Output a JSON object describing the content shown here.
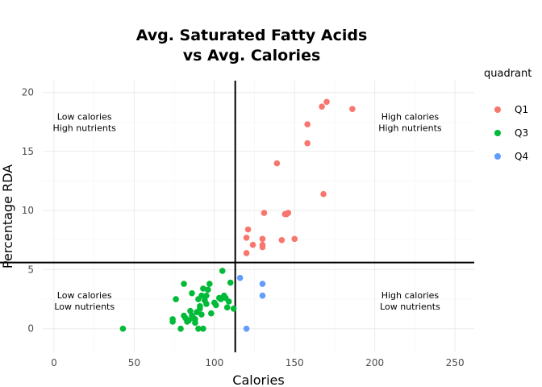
{
  "chart_data": {
    "type": "scatter",
    "title": "Avg. Saturated Fatty Acids\nvs Avg. Calories",
    "xlabel": "Calories",
    "ylabel": "Percentage RDA",
    "xlim": [
      -7,
      262
    ],
    "ylim": [
      -2,
      21
    ],
    "x_ticks": [
      0,
      50,
      100,
      150,
      200,
      250
    ],
    "y_ticks": [
      0,
      5,
      10,
      15,
      20
    ],
    "grid": true,
    "vline_x": 113,
    "hline_y": 5.6,
    "legend": {
      "title": "quadrant",
      "position": "right"
    },
    "annotations": [
      {
        "text": "Low calories\nHigh nutrients",
        "x": 19,
        "y": 17.2
      },
      {
        "text": "High calories\nHigh nutrients",
        "x": 222,
        "y": 17.2
      },
      {
        "text": "Low calories\nLow nutrients",
        "x": 19,
        "y": 2.1
      },
      {
        "text": "High calories\nLow nutrients",
        "x": 222,
        "y": 2.1
      }
    ],
    "series": [
      {
        "name": "Q1",
        "color": "#F8766D",
        "points": [
          [
            170,
            19.2
          ],
          [
            167,
            18.8
          ],
          [
            186,
            18.6
          ],
          [
            158,
            17.3
          ],
          [
            158,
            15.7
          ],
          [
            139,
            14.0
          ],
          [
            168,
            11.4
          ],
          [
            131,
            9.8
          ],
          [
            146,
            9.8
          ],
          [
            144,
            9.7
          ],
          [
            145,
            9.7
          ],
          [
            121,
            8.4
          ],
          [
            120,
            7.7
          ],
          [
            130,
            7.6
          ],
          [
            150,
            7.6
          ],
          [
            142,
            7.5
          ],
          [
            124,
            7.1
          ],
          [
            130,
            7.1
          ],
          [
            130,
            6.9
          ],
          [
            120,
            6.4
          ]
        ]
      },
      {
        "name": "Q3",
        "color": "#00BA38",
        "points": [
          [
            43,
            0.0
          ],
          [
            74,
            0.6
          ],
          [
            74,
            0.8
          ],
          [
            76,
            2.5
          ],
          [
            79,
            0.0
          ],
          [
            81,
            1.1
          ],
          [
            81,
            3.8
          ],
          [
            82,
            0.9
          ],
          [
            83,
            0.6
          ],
          [
            84,
            0.7
          ],
          [
            85,
            1.5
          ],
          [
            86,
            3.0
          ],
          [
            86,
            1.1
          ],
          [
            87,
            0.9
          ],
          [
            88,
            0.5
          ],
          [
            88,
            0.8
          ],
          [
            89,
            1.4
          ],
          [
            90,
            2.5
          ],
          [
            90,
            0.0
          ],
          [
            91,
            1.7
          ],
          [
            91,
            1.9
          ],
          [
            92,
            2.8
          ],
          [
            92,
            1.2
          ],
          [
            93,
            3.4
          ],
          [
            93,
            0.0
          ],
          [
            94,
            2.4
          ],
          [
            95,
            2.1
          ],
          [
            95,
            2.8
          ],
          [
            96,
            3.3
          ],
          [
            97,
            3.8
          ],
          [
            98,
            1.3
          ],
          [
            100,
            2.2
          ],
          [
            101,
            2.0
          ],
          [
            103,
            2.6
          ],
          [
            104,
            2.5
          ],
          [
            105,
            4.9
          ],
          [
            106,
            2.8
          ],
          [
            107,
            2.6
          ],
          [
            108,
            1.8
          ],
          [
            109,
            2.3
          ],
          [
            110,
            3.9
          ],
          [
            112,
            1.7
          ]
        ]
      },
      {
        "name": "Q4",
        "color": "#619CFF",
        "points": [
          [
            116,
            4.3
          ],
          [
            120,
            0.0
          ],
          [
            130,
            3.8
          ],
          [
            130,
            2.8
          ]
        ]
      }
    ]
  }
}
